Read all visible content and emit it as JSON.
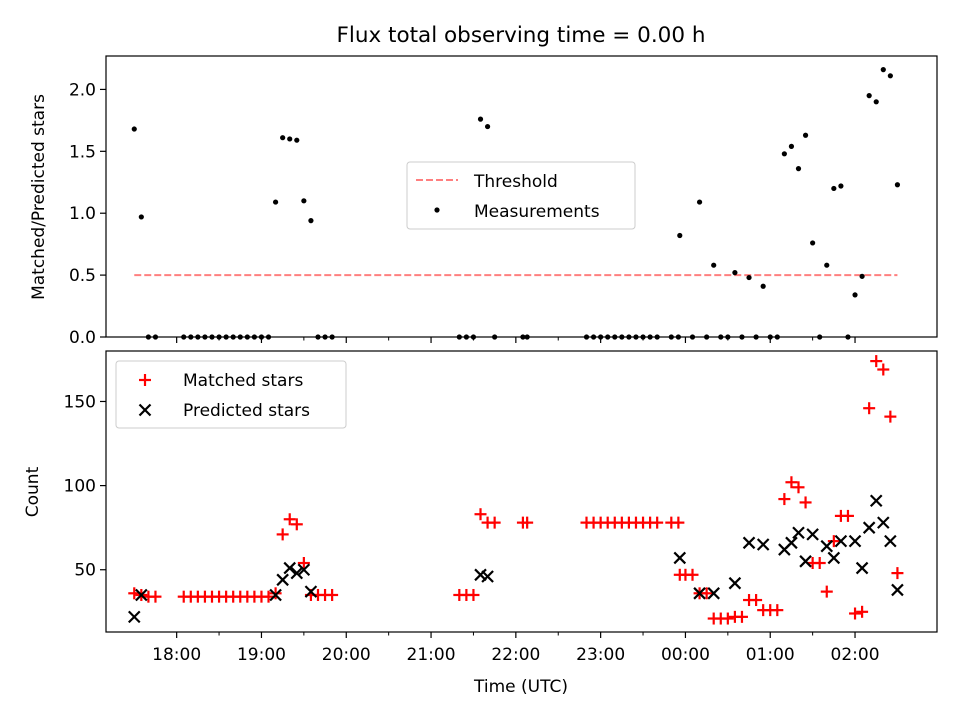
{
  "figure": {
    "title": "Flux total observing time = 0.00 h",
    "xlabel": "Time (UTC)"
  },
  "chart_data": [
    {
      "type": "scatter",
      "ylabel": "Matched/Predicted stars",
      "ylim": [
        0,
        2.27
      ],
      "yticks": [
        "0.0",
        "0.5",
        "1.0",
        "1.5",
        "2.0"
      ],
      "xlim": [
        "17:10",
        "02:58"
      ],
      "legend_placement": "center",
      "threshold": {
        "name": "Threshold",
        "value": 0.5,
        "x_range": [
          "17:30",
          "02:30"
        ],
        "color": "#ff7f7f"
      },
      "series": [
        {
          "name": "Measurements",
          "color": "#000000",
          "points": [
            [
              "17:30",
              1.68
            ],
            [
              "17:35",
              0.97
            ],
            [
              "17:40",
              0
            ],
            [
              "17:45",
              0
            ],
            [
              "18:05",
              0
            ],
            [
              "18:10",
              0
            ],
            [
              "18:15",
              0
            ],
            [
              "18:20",
              0
            ],
            [
              "18:25",
              0
            ],
            [
              "18:30",
              0
            ],
            [
              "18:35",
              0
            ],
            [
              "18:40",
              0
            ],
            [
              "18:45",
              0
            ],
            [
              "18:50",
              0
            ],
            [
              "18:55",
              0
            ],
            [
              "19:00",
              0
            ],
            [
              "19:05",
              0
            ],
            [
              "19:10",
              1.09
            ],
            [
              "19:15",
              1.61
            ],
            [
              "19:20",
              1.6
            ],
            [
              "19:25",
              1.59
            ],
            [
              "19:30",
              1.1
            ],
            [
              "19:35",
              0.94
            ],
            [
              "19:40",
              0
            ],
            [
              "19:45",
              0
            ],
            [
              "19:50",
              0
            ],
            [
              "21:20",
              0
            ],
            [
              "21:25",
              0
            ],
            [
              "21:30",
              0
            ],
            [
              "21:35",
              1.76
            ],
            [
              "21:40",
              1.7
            ],
            [
              "21:45",
              0
            ],
            [
              "22:05",
              0
            ],
            [
              "22:08",
              0
            ],
            [
              "22:50",
              0
            ],
            [
              "22:55",
              0
            ],
            [
              "23:00",
              0
            ],
            [
              "23:05",
              0
            ],
            [
              "23:10",
              0
            ],
            [
              "23:15",
              0
            ],
            [
              "23:20",
              0
            ],
            [
              "23:25",
              0
            ],
            [
              "23:30",
              0
            ],
            [
              "23:35",
              0
            ],
            [
              "23:40",
              0
            ],
            [
              "23:50",
              0
            ],
            [
              "23:55",
              0
            ],
            [
              "23:56",
              0.82
            ],
            [
              "00:05",
              0
            ],
            [
              "00:10",
              1.09
            ],
            [
              "00:15",
              0
            ],
            [
              "00:20",
              0.58
            ],
            [
              "00:25",
              0
            ],
            [
              "00:30",
              0
            ],
            [
              "00:35",
              0.52
            ],
            [
              "00:40",
              0
            ],
            [
              "00:45",
              0.48
            ],
            [
              "00:50",
              0
            ],
            [
              "00:55",
              0.41
            ],
            [
              "01:00",
              0
            ],
            [
              "01:05",
              0
            ],
            [
              "01:10",
              1.48
            ],
            [
              "01:15",
              1.54
            ],
            [
              "01:20",
              1.36
            ],
            [
              "01:25",
              1.63
            ],
            [
              "01:30",
              0.76
            ],
            [
              "01:35",
              0
            ],
            [
              "01:40",
              0.58
            ],
            [
              "01:45",
              1.2
            ],
            [
              "01:50",
              1.22
            ],
            [
              "01:55",
              0
            ],
            [
              "02:00",
              0.34
            ],
            [
              "02:05",
              0.49
            ],
            [
              "02:10",
              1.95
            ],
            [
              "02:15",
              1.9
            ],
            [
              "02:20",
              2.16
            ],
            [
              "02:25",
              2.11
            ],
            [
              "02:30",
              1.23
            ]
          ]
        }
      ]
    },
    {
      "type": "scatter",
      "ylabel": "Count",
      "ylim": [
        13,
        180
      ],
      "yticks": [
        "50",
        "100",
        "150"
      ],
      "xlim": [
        "17:10",
        "02:58"
      ],
      "xticks": [
        "18:00",
        "19:00",
        "20:00",
        "21:00",
        "22:00",
        "23:00",
        "00:00",
        "01:00",
        "02:00"
      ],
      "legend_placement": "upper left",
      "series": [
        {
          "name": "Matched stars",
          "color": "#ff0000",
          "marker": "plus",
          "points": [
            [
              "17:30",
              36
            ],
            [
              "17:35",
              35
            ],
            [
              "17:40",
              34
            ],
            [
              "17:45",
              34
            ],
            [
              "18:05",
              34
            ],
            [
              "18:10",
              34
            ],
            [
              "18:15",
              34
            ],
            [
              "18:20",
              34
            ],
            [
              "18:25",
              34
            ],
            [
              "18:30",
              34
            ],
            [
              "18:35",
              34
            ],
            [
              "18:40",
              34
            ],
            [
              "18:45",
              34
            ],
            [
              "18:50",
              34
            ],
            [
              "18:55",
              34
            ],
            [
              "19:00",
              34
            ],
            [
              "19:05",
              34
            ],
            [
              "19:10",
              36
            ],
            [
              "19:15",
              71
            ],
            [
              "19:20",
              80
            ],
            [
              "19:25",
              77
            ],
            [
              "19:30",
              54
            ],
            [
              "19:35",
              35
            ],
            [
              "19:40",
              35
            ],
            [
              "19:45",
              35
            ],
            [
              "19:50",
              35
            ],
            [
              "21:20",
              35
            ],
            [
              "21:25",
              35
            ],
            [
              "21:30",
              35
            ],
            [
              "21:35",
              83
            ],
            [
              "21:40",
              78
            ],
            [
              "21:45",
              78
            ],
            [
              "22:05",
              78
            ],
            [
              "22:08",
              78
            ],
            [
              "22:50",
              78
            ],
            [
              "22:55",
              78
            ],
            [
              "23:00",
              78
            ],
            [
              "23:05",
              78
            ],
            [
              "23:10",
              78
            ],
            [
              "23:15",
              78
            ],
            [
              "23:20",
              78
            ],
            [
              "23:25",
              78
            ],
            [
              "23:30",
              78
            ],
            [
              "23:35",
              78
            ],
            [
              "23:40",
              78
            ],
            [
              "23:50",
              78
            ],
            [
              "23:55",
              78
            ],
            [
              "23:56",
              47
            ],
            [
              "00:00",
              47
            ],
            [
              "00:05",
              47
            ],
            [
              "00:10",
              36
            ],
            [
              "00:15",
              36
            ],
            [
              "00:20",
              21
            ],
            [
              "00:25",
              21
            ],
            [
              "00:30",
              21
            ],
            [
              "00:35",
              22
            ],
            [
              "00:40",
              22
            ],
            [
              "00:45",
              32
            ],
            [
              "00:50",
              32
            ],
            [
              "00:55",
              26
            ],
            [
              "01:00",
              26
            ],
            [
              "01:05",
              26
            ],
            [
              "01:10",
              92
            ],
            [
              "01:15",
              102
            ],
            [
              "01:20",
              99
            ],
            [
              "01:25",
              90
            ],
            [
              "01:30",
              54
            ],
            [
              "01:35",
              54
            ],
            [
              "01:40",
              37
            ],
            [
              "01:45",
              67
            ],
            [
              "01:50",
              82
            ],
            [
              "01:55",
              82
            ],
            [
              "02:00",
              24
            ],
            [
              "02:05",
              25
            ],
            [
              "02:10",
              146
            ],
            [
              "02:15",
              174
            ],
            [
              "02:20",
              169
            ],
            [
              "02:25",
              141
            ],
            [
              "02:30",
              48
            ]
          ]
        },
        {
          "name": "Predicted stars",
          "color": "#000000",
          "marker": "x",
          "points": [
            [
              "17:30",
              22
            ],
            [
              "17:35",
              35
            ],
            [
              "19:10",
              35
            ],
            [
              "19:15",
              44
            ],
            [
              "19:20",
              51
            ],
            [
              "19:25",
              48
            ],
            [
              "19:30",
              50
            ],
            [
              "19:35",
              37
            ],
            [
              "21:35",
              47
            ],
            [
              "21:40",
              46
            ],
            [
              "23:56",
              57
            ],
            [
              "00:10",
              36
            ],
            [
              "00:20",
              36
            ],
            [
              "00:35",
              42
            ],
            [
              "00:45",
              66
            ],
            [
              "00:55",
              65
            ],
            [
              "01:10",
              62
            ],
            [
              "01:15",
              66
            ],
            [
              "01:20",
              72
            ],
            [
              "01:25",
              55
            ],
            [
              "01:30",
              71
            ],
            [
              "01:40",
              64
            ],
            [
              "01:45",
              57
            ],
            [
              "01:50",
              67
            ],
            [
              "02:00",
              67
            ],
            [
              "02:05",
              51
            ],
            [
              "02:10",
              75
            ],
            [
              "02:15",
              91
            ],
            [
              "02:20",
              78
            ],
            [
              "02:25",
              67
            ],
            [
              "02:30",
              38
            ]
          ]
        }
      ]
    }
  ]
}
